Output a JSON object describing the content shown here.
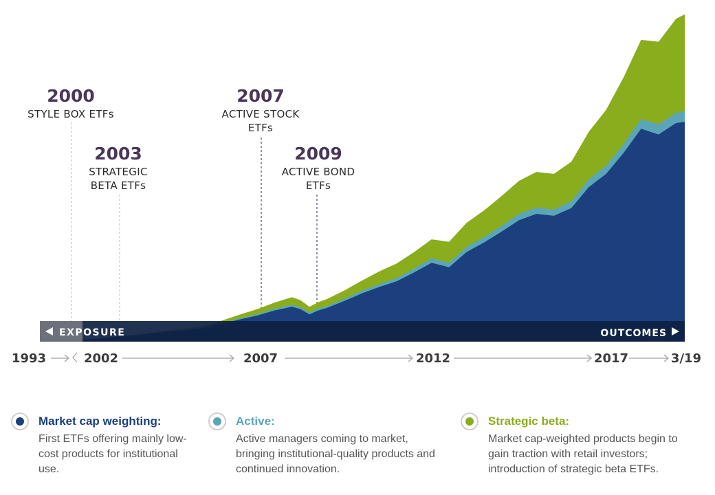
{
  "chart_data": {
    "type": "area",
    "stacked": true,
    "x_ticks": [
      "1993",
      "2002",
      "2007",
      "2012",
      "2017",
      "3/19"
    ],
    "banner": {
      "left": "EXPOSURE",
      "right": "OUTCOMES"
    },
    "x": [
      2002.0,
      2002.5,
      2003.0,
      2003.5,
      2004.0,
      2004.5,
      2005.0,
      2005.5,
      2006.0,
      2006.5,
      2007.0,
      2007.5,
      2008.0,
      2008.25,
      2008.5,
      2008.75,
      2009.0,
      2009.5,
      2010.0,
      2010.5,
      2011.0,
      2011.5,
      2012.0,
      2012.5,
      2013.0,
      2013.5,
      2014.0,
      2014.5,
      2015.0,
      2015.5,
      2016.0,
      2016.5,
      2017.0,
      2017.5,
      2018.0,
      2018.5,
      2019.0,
      2019.25
    ],
    "series": [
      {
        "name": "Market cap weighting",
        "color": "#1c3f7e",
        "values": [
          2,
          4,
          7,
          9,
          12,
          15,
          17,
          20,
          27,
          34,
          40,
          48,
          54,
          50,
          42,
          48,
          52,
          63,
          75,
          85,
          94,
          108,
          123,
          116,
          140,
          155,
          172,
          190,
          200,
          197,
          209,
          242,
          263,
          296,
          334,
          325,
          343,
          345
        ]
      },
      {
        "name": "Active",
        "color": "#5aa6b8",
        "values": [
          0,
          0,
          0,
          0.2,
          0.4,
          0.5,
          0.7,
          1,
          1.3,
          1.6,
          2,
          2.5,
          3,
          3,
          2.8,
          3,
          3,
          3.5,
          4,
          4.5,
          5,
          6,
          7,
          7,
          8,
          8.5,
          9,
          10,
          10,
          10,
          11,
          12,
          13,
          14,
          15,
          16,
          16,
          17
        ]
      },
      {
        "name": "Strategic beta",
        "color": "#8aad1e",
        "values": [
          0,
          0,
          0,
          0.5,
          1,
          1.5,
          2,
          3,
          4,
          6,
          8,
          10,
          12,
          11,
          9,
          10,
          11,
          13,
          16,
          20,
          23,
          26,
          30,
          33,
          38,
          42,
          47,
          52,
          56,
          56,
          62,
          75,
          88,
          105,
          125,
          130,
          148,
          152
        ]
      }
    ],
    "annotations": [
      {
        "year": "2000",
        "label": "STYLE BOX ETFs"
      },
      {
        "year": "2003",
        "label": "STRATEGIC BETA ETFs"
      },
      {
        "year": "2007",
        "label": "ACTIVE STOCK ETFs"
      },
      {
        "year": "2009",
        "label": "ACTIVE BOND ETFs"
      }
    ]
  },
  "legend": [
    {
      "title": "Market cap weighting:",
      "color": "#1c3f7e",
      "description": "First ETFs offering mainly low-cost products for institutional use."
    },
    {
      "title": "Active:",
      "color": "#5aa6b8",
      "description": "Active managers coming to market, bringing institutional-quality products and continued innovation."
    },
    {
      "title": "Strategic beta:",
      "color": "#8aad1e",
      "description": "Market cap-weighted products begin to gain traction with retail investors; introduction of strategic beta ETFs."
    }
  ]
}
